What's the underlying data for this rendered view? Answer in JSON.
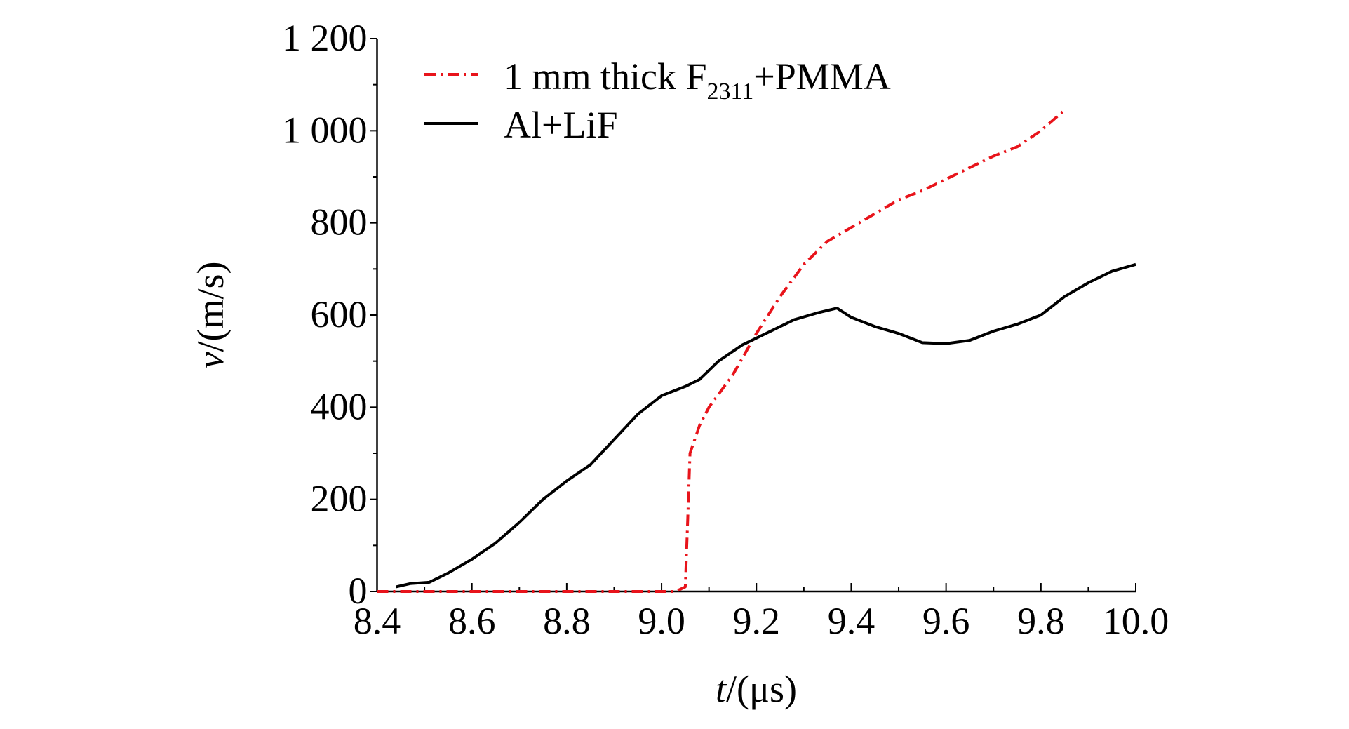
{
  "chart_data": {
    "type": "line",
    "xlabel": "t/(μs)",
    "xlabel_italic": "t",
    "xlabel_rest": "/(μs)",
    "ylabel": "v/(m/s)",
    "ylabel_italic": "v",
    "ylabel_rest": "/(m/s)",
    "xlim": [
      8.4,
      10.0
    ],
    "ylim": [
      0,
      1200
    ],
    "xticks": [
      8.4,
      8.6,
      8.8,
      9.0,
      9.2,
      9.4,
      9.6,
      9.8,
      10.0
    ],
    "xtick_labels": [
      "8.4",
      "8.6",
      "8.8",
      "9.0",
      "9.2",
      "9.4",
      "9.6",
      "9.8",
      "10.0"
    ],
    "yticks": [
      0,
      200,
      400,
      600,
      800,
      1000,
      1200
    ],
    "ytick_labels": [
      "0",
      "200",
      "400",
      "600",
      "800",
      "1 000",
      "1 200"
    ],
    "grid": false,
    "legend_position": "top-left",
    "series": [
      {
        "name": "1 mm thick F2311+PMMA",
        "name_prefix": "1 mm thick F",
        "name_sub": "2311",
        "name_suffix": "+PMMA",
        "color": "#e8141b",
        "style": "dash-dot",
        "x": [
          8.4,
          9.03,
          9.05,
          9.055,
          9.06,
          9.08,
          9.1,
          9.15,
          9.2,
          9.25,
          9.3,
          9.35,
          9.4,
          9.45,
          9.5,
          9.55,
          9.6,
          9.65,
          9.7,
          9.75,
          9.8,
          9.85
        ],
        "y": [
          0,
          0,
          10,
          150,
          300,
          360,
          400,
          470,
          560,
          640,
          710,
          760,
          790,
          820,
          850,
          870,
          895,
          920,
          945,
          965,
          1000,
          1045
        ]
      },
      {
        "name": "Al+LiF",
        "color": "#000000",
        "style": "solid",
        "x": [
          8.44,
          8.47,
          8.51,
          8.55,
          8.6,
          8.65,
          8.7,
          8.75,
          8.8,
          8.85,
          8.9,
          8.95,
          9.0,
          9.05,
          9.08,
          9.12,
          9.17,
          9.22,
          9.28,
          9.33,
          9.37,
          9.4,
          9.45,
          9.5,
          9.55,
          9.6,
          9.65,
          9.7,
          9.75,
          9.8,
          9.85,
          9.9,
          9.95,
          10.0
        ],
        "y": [
          10,
          17,
          20,
          40,
          70,
          105,
          150,
          200,
          240,
          275,
          330,
          385,
          425,
          445,
          460,
          500,
          535,
          560,
          590,
          605,
          615,
          595,
          575,
          560,
          540,
          538,
          545,
          565,
          580,
          600,
          640,
          670,
          695,
          710
        ]
      }
    ]
  }
}
